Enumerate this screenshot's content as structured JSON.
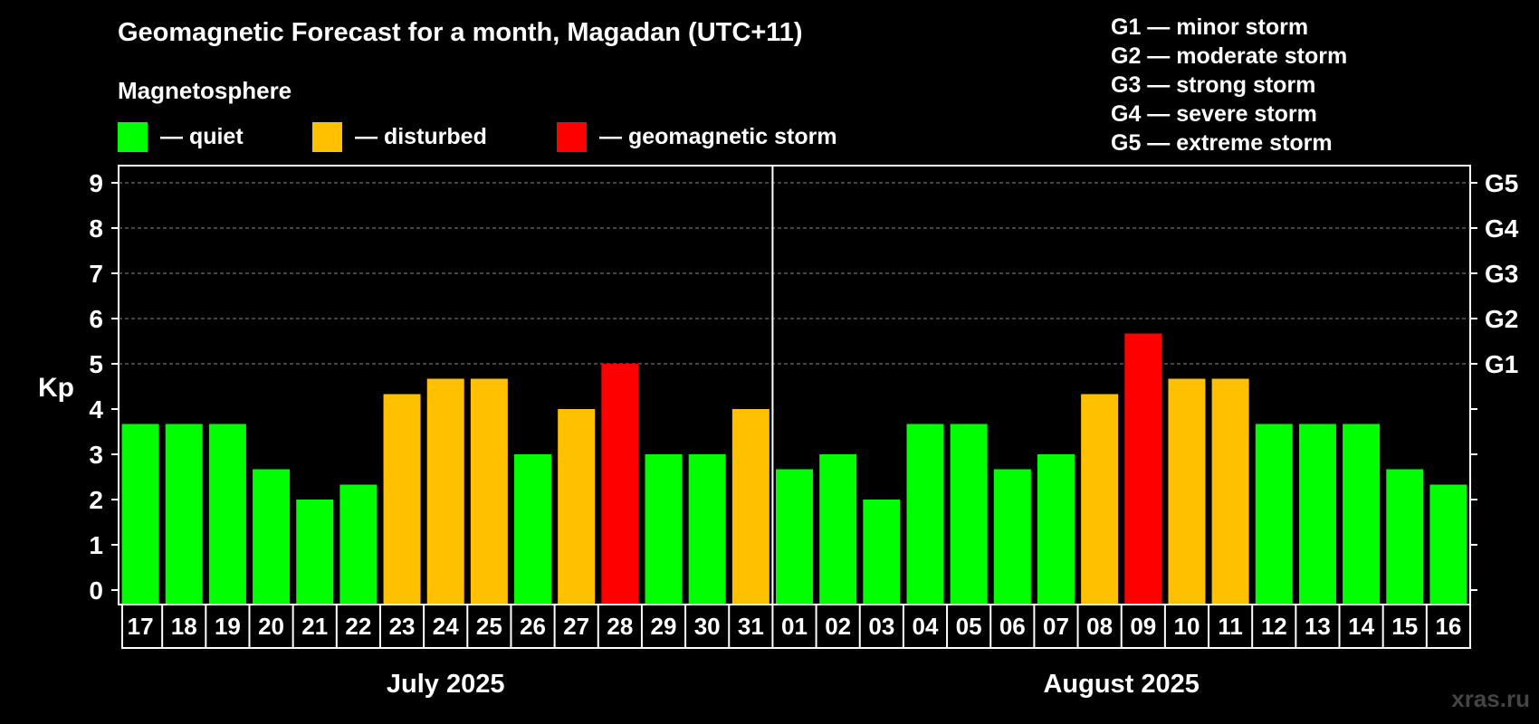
{
  "header": {
    "title": "Geomagnetic Forecast for a month, Magadan (UTC+11)",
    "magnetosphere_label": "Magnetosphere"
  },
  "legend": [
    {
      "label": "— quiet",
      "color": "#00ff00"
    },
    {
      "label": "— disturbed",
      "color": "#ffc000"
    },
    {
      "label": "— geomagnetic storm",
      "color": "#ff0000"
    }
  ],
  "g_scale": [
    "G1 — minor storm",
    "G2 — moderate storm",
    "G3 — strong storm",
    "G4 — severe storm",
    "G5 — extreme storm"
  ],
  "watermark": "xras.ru",
  "chart_data": {
    "type": "bar",
    "title": "Geomagnetic Forecast for a month, Magadan (UTC+11)",
    "ylabel": "Kp",
    "ylim": [
      0,
      9
    ],
    "yticks": [
      "0",
      "1",
      "2",
      "3",
      "4",
      "5",
      "6",
      "7",
      "8",
      "9"
    ],
    "right_axis": [
      {
        "kp": 5,
        "label": "G1"
      },
      {
        "kp": 6,
        "label": "G2"
      },
      {
        "kp": 7,
        "label": "G3"
      },
      {
        "kp": 8,
        "label": "G4"
      },
      {
        "kp": 9,
        "label": "G5"
      }
    ],
    "grid": true,
    "months": [
      {
        "label": "July 2025",
        "count": 15
      },
      {
        "label": "August 2025",
        "count": 16
      }
    ],
    "categories": [
      "17",
      "18",
      "19",
      "20",
      "21",
      "22",
      "23",
      "24",
      "25",
      "26",
      "27",
      "28",
      "29",
      "30",
      "31",
      "01",
      "02",
      "03",
      "04",
      "05",
      "06",
      "07",
      "08",
      "09",
      "10",
      "11",
      "12",
      "13",
      "14",
      "15",
      "16"
    ],
    "values": [
      3.67,
      3.67,
      3.67,
      2.67,
      2.0,
      2.33,
      4.33,
      4.67,
      4.67,
      3.0,
      4.0,
      5.0,
      3.0,
      3.0,
      4.0,
      2.67,
      3.0,
      2.0,
      3.67,
      3.67,
      2.67,
      3.0,
      4.33,
      5.67,
      4.67,
      4.67,
      3.67,
      3.67,
      3.67,
      2.67,
      2.33
    ],
    "levels": [
      "quiet",
      "quiet",
      "quiet",
      "quiet",
      "quiet",
      "quiet",
      "disturbed",
      "disturbed",
      "disturbed",
      "quiet",
      "disturbed",
      "storm",
      "quiet",
      "quiet",
      "disturbed",
      "quiet",
      "quiet",
      "quiet",
      "quiet",
      "quiet",
      "quiet",
      "quiet",
      "disturbed",
      "storm",
      "disturbed",
      "disturbed",
      "quiet",
      "quiet",
      "quiet",
      "quiet",
      "quiet"
    ],
    "level_colors": {
      "quiet": "#00ff00",
      "disturbed": "#ffc000",
      "storm": "#ff0000"
    }
  }
}
